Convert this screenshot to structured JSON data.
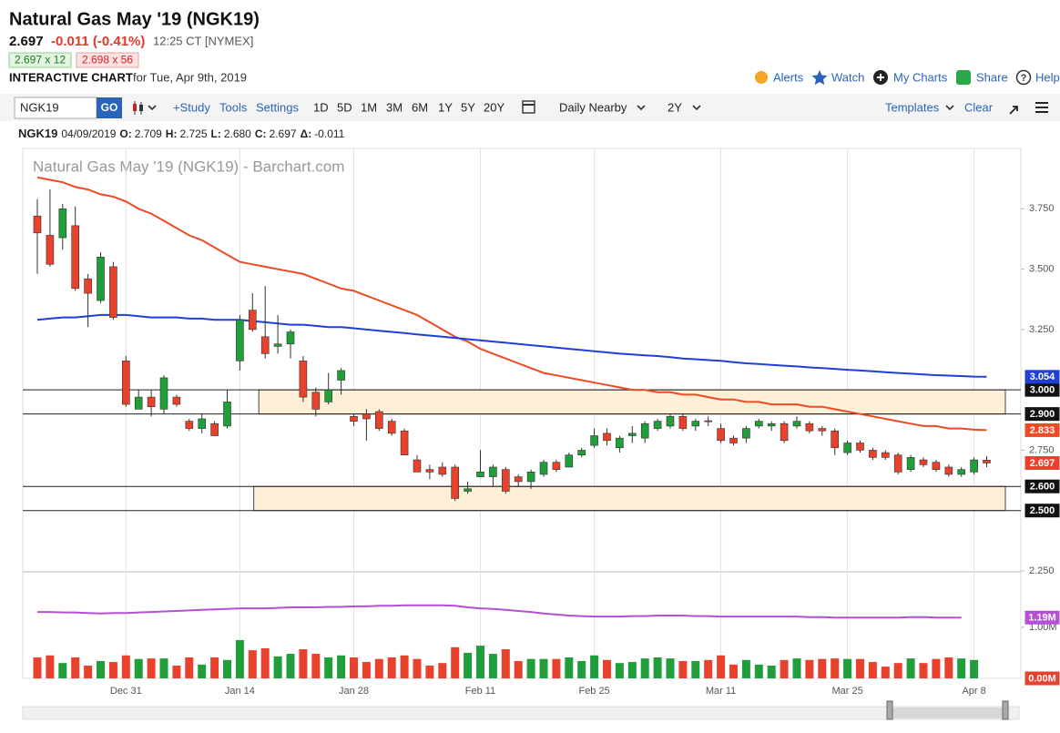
{
  "header": {
    "title": "Natural Gas May '19 (NGK19)",
    "last": "2.697",
    "change": "-0.011 (-0.41%)",
    "time": "12:25 CT [NYMEX]",
    "bid": "2.697 x 12",
    "ask": "2.698 x 56",
    "chart_label": "INTERACTIVE CHART",
    "chart_date": "for Tue, Apr 9th, 2019",
    "links": [
      "Alerts",
      "Watch",
      "My Charts",
      "Share",
      "Help"
    ]
  },
  "toolbar": {
    "symbol": "NGK19",
    "go": "GO",
    "tools": [
      "+Study",
      "Tools",
      "Settings"
    ],
    "periods": [
      "1D",
      "5D",
      "1M",
      "3M",
      "6M",
      "1Y",
      "5Y",
      "20Y"
    ],
    "aggregation": "Daily Nearby",
    "range": "2Y",
    "templates": "Templates",
    "clear": "Clear"
  },
  "legend_bar": {
    "symbol": "NGK19",
    "date": "04/09/2019",
    "fields": [
      [
        "O:",
        "2.709"
      ],
      [
        "H:",
        "2.725"
      ],
      [
        "L:",
        "2.680"
      ],
      [
        "C:",
        "2.697"
      ],
      [
        "Δ:",
        "-0.011"
      ]
    ]
  },
  "chart_data": {
    "type": "candlestick",
    "title": "Natural Gas May '19 (NGK19) - Barchart.com",
    "categories": [
      null,
      null,
      null,
      null,
      null,
      null,
      null,
      "Dec 31",
      null,
      null,
      null,
      null,
      null,
      null,
      null,
      null,
      "Jan 14",
      null,
      null,
      null,
      null,
      null,
      null,
      null,
      null,
      "Jan 28",
      null,
      null,
      null,
      null,
      null,
      null,
      null,
      null,
      null,
      "Feb 11",
      null,
      null,
      null,
      null,
      null,
      null,
      null,
      null,
      "Feb 25",
      null,
      null,
      null,
      null,
      null,
      null,
      null,
      null,
      null,
      "Mar 11",
      null,
      null,
      null,
      null,
      null,
      null,
      null,
      null,
      null,
      "Mar 25",
      null,
      null,
      null,
      null,
      null,
      null,
      null,
      null,
      null,
      "Apr 8",
      null
    ],
    "open": [
      3.72,
      3.64,
      3.63,
      3.68,
      3.46,
      3.37,
      3.51,
      3.12,
      2.92,
      2.97,
      2.92,
      2.97,
      2.87,
      2.84,
      2.86,
      2.85,
      3.12,
      3.33,
      3.22,
      3.18,
      3.19,
      3.12,
      2.99,
      2.95,
      3.04,
      2.89,
      2.9,
      2.91,
      2.87,
      2.83,
      2.71,
      2.67,
      2.68,
      2.68,
      2.58,
      2.64,
      2.64,
      2.67,
      2.64,
      2.62,
      2.65,
      2.7,
      2.68,
      2.73,
      2.77,
      2.82,
      2.76,
      2.81,
      2.8,
      2.84,
      2.85,
      2.89,
      2.85,
      2.872,
      2.84,
      2.8,
      2.8,
      2.85,
      2.85,
      2.86,
      2.85,
      2.86,
      2.84,
      2.83,
      2.74,
      2.78,
      2.75,
      2.74,
      2.73,
      2.67,
      2.71,
      2.7,
      2.68,
      2.65,
      2.66,
      2.709
    ],
    "high": [
      3.79,
      3.83,
      3.77,
      3.76,
      3.48,
      3.57,
      3.53,
      3.14,
      3.0,
      3.0,
      3.06,
      2.98,
      2.88,
      2.9,
      2.87,
      3.0,
      3.31,
      3.4,
      3.43,
      3.31,
      3.25,
      3.14,
      3.01,
      3.07,
      3.09,
      2.9,
      2.92,
      2.92,
      2.88,
      2.84,
      2.73,
      2.69,
      2.7,
      2.69,
      2.62,
      2.75,
      2.69,
      2.68,
      2.65,
      2.67,
      2.71,
      2.71,
      2.74,
      2.76,
      2.84,
      2.84,
      2.81,
      2.85,
      2.87,
      2.88,
      2.9,
      2.9,
      2.88,
      2.89,
      2.86,
      2.81,
      2.85,
      2.88,
      2.87,
      2.87,
      2.89,
      2.87,
      2.85,
      2.84,
      2.79,
      2.79,
      2.76,
      2.75,
      2.74,
      2.73,
      2.72,
      2.71,
      2.69,
      2.68,
      2.72,
      2.725
    ],
    "low": [
      3.48,
      3.51,
      3.58,
      3.41,
      3.26,
      3.36,
      3.29,
      2.93,
      2.92,
      2.89,
      2.9,
      2.93,
      2.83,
      2.82,
      2.81,
      2.84,
      3.08,
      3.24,
      3.13,
      3.15,
      3.13,
      2.95,
      2.89,
      2.94,
      2.98,
      2.85,
      2.79,
      2.83,
      2.81,
      2.73,
      2.66,
      2.63,
      2.64,
      2.54,
      2.57,
      2.64,
      2.6,
      2.57,
      2.6,
      2.59,
      2.64,
      2.66,
      2.68,
      2.72,
      2.76,
      2.77,
      2.74,
      2.78,
      2.78,
      2.83,
      2.84,
      2.83,
      2.83,
      2.85,
      2.78,
      2.77,
      2.78,
      2.84,
      2.83,
      2.78,
      2.84,
      2.82,
      2.81,
      2.73,
      2.73,
      2.74,
      2.71,
      2.71,
      2.65,
      2.66,
      2.68,
      2.66,
      2.64,
      2.64,
      2.65,
      2.68
    ],
    "close": [
      3.65,
      3.52,
      3.75,
      3.42,
      3.4,
      3.55,
      3.3,
      2.94,
      2.97,
      2.93,
      3.05,
      2.94,
      2.84,
      2.88,
      2.81,
      2.95,
      3.29,
      3.25,
      3.15,
      3.19,
      3.24,
      2.97,
      2.92,
      3.0,
      3.08,
      2.87,
      2.88,
      2.84,
      2.82,
      2.73,
      2.66,
      2.66,
      2.65,
      2.55,
      2.59,
      2.66,
      2.68,
      2.58,
      2.62,
      2.66,
      2.7,
      2.67,
      2.73,
      2.75,
      2.81,
      2.79,
      2.8,
      2.82,
      2.86,
      2.87,
      2.89,
      2.84,
      2.87,
      2.868,
      2.79,
      2.78,
      2.84,
      2.87,
      2.86,
      2.79,
      2.87,
      2.83,
      2.83,
      2.76,
      2.78,
      2.75,
      2.72,
      2.72,
      2.66,
      2.72,
      2.69,
      2.67,
      2.65,
      2.67,
      2.71,
      2.697
    ],
    "up_color": "#1f9e3a",
    "down_color": "#e8412c",
    "series": [
      {
        "color": "#ee4a26",
        "values": [
          3.88,
          3.87,
          3.86,
          3.84,
          3.83,
          3.81,
          3.8,
          3.78,
          3.75,
          3.73,
          3.7,
          3.67,
          3.64,
          3.62,
          3.59,
          3.56,
          3.53,
          3.52,
          3.51,
          3.5,
          3.49,
          3.48,
          3.46,
          3.44,
          3.42,
          3.41,
          3.39,
          3.37,
          3.35,
          3.33,
          3.31,
          3.28,
          3.25,
          3.22,
          3.2,
          3.17,
          3.15,
          3.13,
          3.11,
          3.09,
          3.07,
          3.06,
          3.05,
          3.04,
          3.03,
          3.02,
          3.01,
          3.0,
          3.0,
          2.99,
          2.99,
          2.98,
          2.98,
          2.97,
          2.96,
          2.96,
          2.95,
          2.95,
          2.94,
          2.94,
          2.94,
          2.93,
          2.93,
          2.92,
          2.91,
          2.9,
          2.89,
          2.88,
          2.87,
          2.86,
          2.85,
          2.85,
          2.84,
          2.84,
          2.835,
          2.833
        ]
      },
      {
        "color": "#1f3fd6",
        "values": [
          3.29,
          3.295,
          3.3,
          3.3,
          3.305,
          3.31,
          3.31,
          3.31,
          3.305,
          3.3,
          3.3,
          3.3,
          3.295,
          3.295,
          3.29,
          3.29,
          3.29,
          3.285,
          3.28,
          3.275,
          3.27,
          3.27,
          3.265,
          3.26,
          3.26,
          3.255,
          3.25,
          3.245,
          3.24,
          3.235,
          3.23,
          3.225,
          3.22,
          3.215,
          3.21,
          3.205,
          3.2,
          3.195,
          3.19,
          3.185,
          3.18,
          3.175,
          3.17,
          3.165,
          3.16,
          3.155,
          3.15,
          3.147,
          3.143,
          3.14,
          3.135,
          3.13,
          3.127,
          3.123,
          3.12,
          3.115,
          3.11,
          3.107,
          3.103,
          3.1,
          3.097,
          3.093,
          3.09,
          3.087,
          3.083,
          3.08,
          3.077,
          3.073,
          3.07,
          3.067,
          3.064,
          3.061,
          3.059,
          3.057,
          3.055,
          3.054
        ]
      }
    ],
    "ylim": [
      2.25,
      4.0
    ],
    "yticks": [
      {
        "value": 3.75,
        "label": "3.750"
      },
      {
        "value": 3.5,
        "label": "3.500"
      },
      {
        "value": 3.25,
        "label": "3.250"
      },
      {
        "value": 2.75,
        "label": "2.750"
      },
      {
        "value": 2.25,
        "label": "2.250"
      }
    ],
    "levels": [
      {
        "value": 3,
        "label": "3.000"
      },
      {
        "value": 2.9,
        "label": "2.900"
      },
      {
        "value": 2.6,
        "label": "2.600"
      },
      {
        "value": 2.5,
        "label": "2.500"
      }
    ],
    "zones": [
      {
        "from": 2.9,
        "to": 3.0,
        "start": 18
      },
      {
        "from": 2.5,
        "to": 2.6,
        "start": 17.6
      }
    ],
    "zone_color": "#fdf0d6",
    "volume": {
      "values": [
        0.41,
        0.45,
        0.3,
        0.41,
        0.25,
        0.34,
        0.32,
        0.45,
        0.38,
        0.39,
        0.39,
        0.25,
        0.41,
        0.27,
        0.41,
        0.36,
        0.75,
        0.55,
        0.59,
        0.43,
        0.48,
        0.57,
        0.48,
        0.41,
        0.45,
        0.41,
        0.32,
        0.38,
        0.41,
        0.45,
        0.38,
        0.25,
        0.3,
        0.61,
        0.5,
        0.64,
        0.48,
        0.57,
        0.34,
        0.38,
        0.38,
        0.38,
        0.41,
        0.34,
        0.45,
        0.36,
        0.3,
        0.32,
        0.39,
        0.41,
        0.39,
        0.34,
        0.34,
        0.36,
        0.45,
        0.27,
        0.36,
        0.27,
        0.25,
        0.36,
        0.39,
        0.36,
        0.38,
        0.39,
        0.38,
        0.38,
        0.32,
        0.23,
        0.3,
        0.39,
        0.3,
        0.38,
        0.41,
        0.39,
        0.36,
        0
      ],
      "value_labels": [
        null,
        null,
        null,
        null,
        null,
        null,
        null,
        null,
        null,
        null,
        null,
        null,
        null,
        null,
        null,
        null,
        null,
        null,
        null,
        null,
        null,
        null,
        null,
        null,
        null,
        null,
        null,
        null,
        null,
        null,
        null,
        null,
        null,
        null,
        null,
        null,
        null,
        null,
        null,
        null,
        null,
        null,
        null,
        null,
        null,
        null,
        null,
        null,
        null,
        null,
        null,
        null,
        null,
        null,
        null,
        null,
        null,
        null,
        null,
        null,
        null,
        null,
        null,
        null,
        null,
        null,
        null,
        null,
        null,
        null,
        null,
        null,
        null,
        null,
        null,
        "0.00M"
      ],
      "ylim": [
        0,
        2.05
      ],
      "yticks": [
        {
          "value": 1,
          "label": "1.00M"
        }
      ]
    },
    "volume_line": {
      "color": "#b44fd6",
      "values": [
        1.3,
        1.3,
        1.29,
        1.29,
        1.28,
        1.27,
        1.28,
        1.28,
        1.29,
        1.3,
        1.31,
        1.32,
        1.33,
        1.34,
        1.35,
        1.36,
        1.37,
        1.37,
        1.37,
        1.38,
        1.39,
        1.39,
        1.39,
        1.4,
        1.4,
        1.41,
        1.41,
        1.42,
        1.42,
        1.43,
        1.43,
        1.43,
        1.43,
        1.42,
        1.39,
        1.37,
        1.36,
        1.34,
        1.32,
        1.3,
        1.27,
        1.25,
        1.23,
        1.22,
        1.21,
        1.21,
        1.21,
        1.22,
        1.22,
        1.23,
        1.23,
        1.23,
        1.22,
        1.22,
        1.21,
        1.21,
        1.21,
        1.21,
        1.21,
        1.21,
        1.21,
        1.2,
        1.2,
        1.19,
        1.19,
        1.19,
        1.19,
        1.19,
        1.19,
        1.2,
        1.2,
        1.19,
        1.19,
        1.19,
        null,
        null
      ],
      "value_labels": [
        null,
        null,
        null,
        null,
        null,
        null,
        null,
        null,
        null,
        null,
        null,
        null,
        null,
        null,
        null,
        null,
        null,
        null,
        null,
        null,
        null,
        null,
        null,
        null,
        null,
        null,
        null,
        null,
        null,
        null,
        null,
        null,
        null,
        null,
        null,
        null,
        null,
        null,
        null,
        null,
        null,
        null,
        null,
        null,
        null,
        null,
        null,
        null,
        null,
        null,
        null,
        null,
        null,
        null,
        null,
        null,
        null,
        null,
        null,
        null,
        null,
        null,
        null,
        null,
        null,
        null,
        null,
        null,
        null,
        null,
        null,
        null,
        null,
        "1.19M",
        null,
        null
      ]
    }
  }
}
